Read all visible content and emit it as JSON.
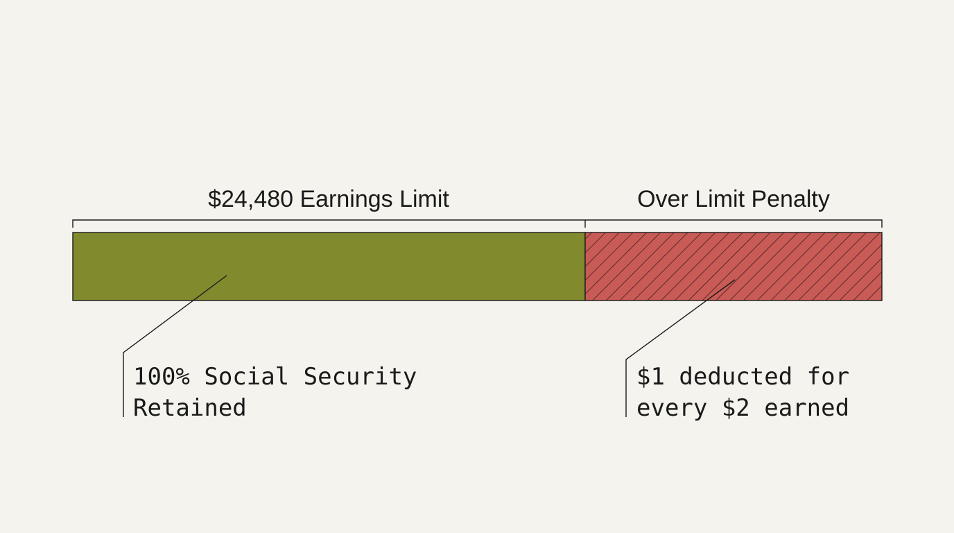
{
  "segments": [
    {
      "label": "$24,480 Earnings Limit",
      "note": [
        "100% Social Security",
        "Retained"
      ]
    },
    {
      "label": "Over Limit Penalty",
      "note": [
        "$1 deducted for",
        "every $2 earned"
      ]
    }
  ]
}
